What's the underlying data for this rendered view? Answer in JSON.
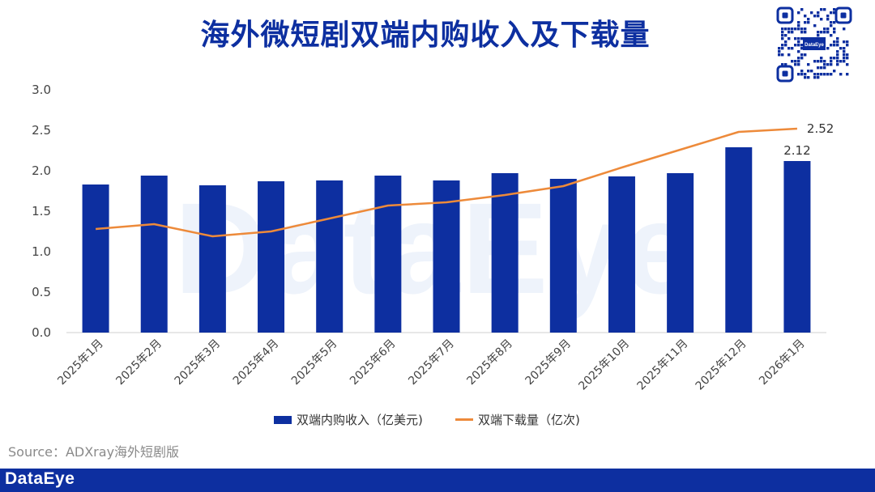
{
  "header": {
    "title": "海外微短剧双端内购收入及下载量",
    "watermark_text": "DataEye"
  },
  "qr_code": {
    "center_label": "DataEye"
  },
  "legend": {
    "bar_label": "双端内购收入（亿美元)",
    "line_label": "双端下载量（亿次)"
  },
  "source": "Source：ADXray海外短剧版",
  "footer": {
    "logo_text": "DataEye"
  },
  "colors": {
    "bar": "#0d2fa0",
    "line": "#ed8a3a",
    "title": "#0d2fa0",
    "footer": "#0d2fa0"
  },
  "chart_data": {
    "type": "bar",
    "categories": [
      "2025年1月",
      "2025年2月",
      "2025年3月",
      "2025年4月",
      "2025年5月",
      "2025年6月",
      "2025年7月",
      "2025年8月",
      "2025年9月",
      "2025年10月",
      "2025年11月",
      "2025年12月",
      "2026年1月"
    ],
    "series": [
      {
        "name": "双端内购收入（亿美元)",
        "type": "bar",
        "values": [
          1.83,
          1.94,
          1.82,
          1.87,
          1.88,
          1.94,
          1.88,
          1.97,
          1.9,
          1.93,
          1.97,
          2.29,
          2.12
        ]
      },
      {
        "name": "双端下载量（亿次)",
        "type": "line",
        "values": [
          1.28,
          1.34,
          1.19,
          1.25,
          1.41,
          1.57,
          1.61,
          1.7,
          1.81,
          2.04,
          2.26,
          2.48,
          2.52
        ]
      }
    ],
    "data_labels": [
      {
        "series": 0,
        "index": 12,
        "text": "2.12"
      },
      {
        "series": 1,
        "index": 12,
        "text": "2.52"
      }
    ],
    "yticks": [
      "0.0",
      "0.5",
      "1.0",
      "1.5",
      "2.0",
      "2.5",
      "3.0"
    ],
    "ylim": [
      0,
      3.0
    ],
    "grid": false,
    "legend_position": "bottom"
  }
}
